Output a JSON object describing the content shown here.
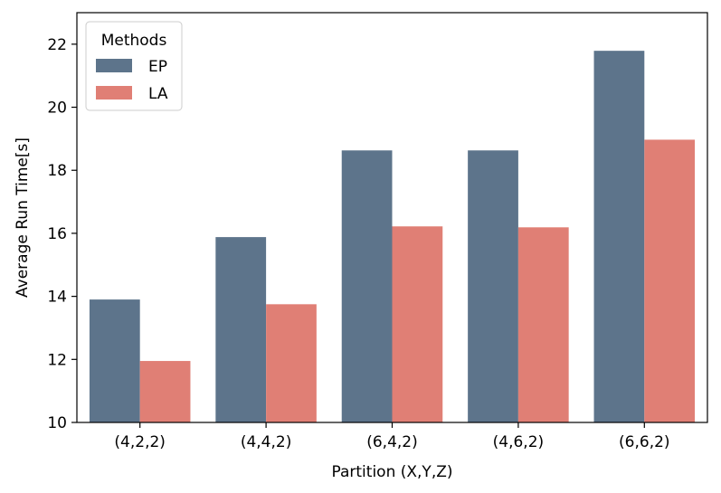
{
  "chart_data": {
    "type": "bar",
    "title": "",
    "xlabel": "Partition (X,Y,Z)",
    "ylabel": "Average Run Time[s]",
    "categories": [
      "(4,2,2)",
      "(4,4,2)",
      "(6,4,2)",
      "(4,6,2)",
      "(6,6,2)"
    ],
    "series": [
      {
        "name": "EP",
        "color": "#5d748b",
        "values": [
          13.9,
          15.88,
          18.63,
          18.63,
          21.79
        ]
      },
      {
        "name": "LA",
        "color": "#e07f75",
        "values": [
          11.95,
          13.75,
          16.22,
          16.19,
          18.97
        ]
      }
    ],
    "ylim": [
      10,
      23
    ],
    "yticks": [
      "10",
      "12",
      "14",
      "16",
      "18",
      "20",
      "22"
    ],
    "grid": false,
    "legend": {
      "title": "Methods",
      "placement": "top-left"
    }
  }
}
